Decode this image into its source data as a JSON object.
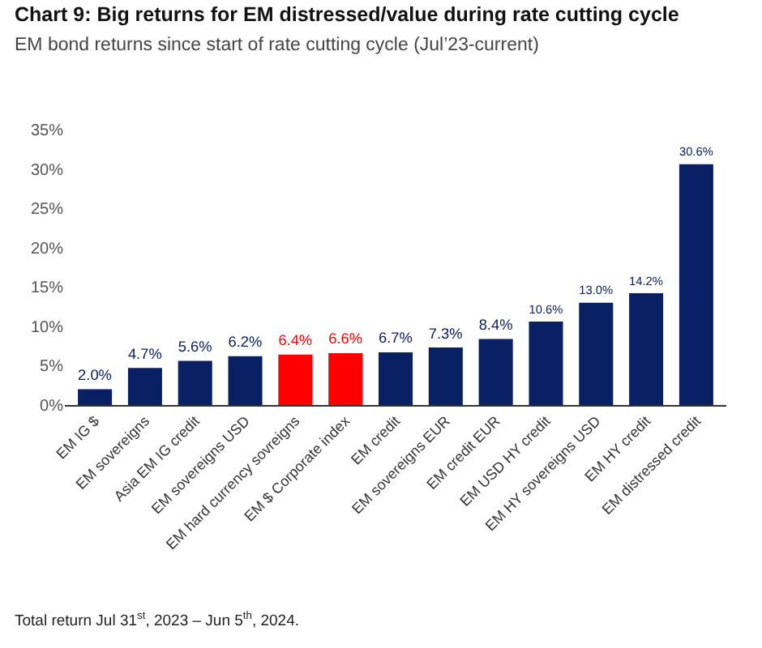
{
  "chart_data": {
    "type": "bar",
    "title": "Chart 9: Big returns for EM distressed/value during rate cutting cycle",
    "subtitle": "EM bond returns since start of rate cutting cycle (Jul’23-current)",
    "categories": [
      "EM IG $",
      "EM sovereigns",
      "Asia EM IG credit",
      "EM sovereigns USD",
      "EM hard currency sovreigns",
      "EM $ Corporate index",
      "EM credit",
      "EM sovereigns EUR",
      "EM credit EUR",
      "EM USD HY credit",
      "EM HY sovereigns USD",
      "EM HY credit",
      "EM distressed credit"
    ],
    "values": [
      2.0,
      4.7,
      5.6,
      6.2,
      6.4,
      6.6,
      6.7,
      7.3,
      8.4,
      10.6,
      13.0,
      14.2,
      30.6
    ],
    "value_labels": [
      "2.0%",
      "4.7%",
      "5.6%",
      "6.2%",
      "6.4%",
      "6.6%",
      "6.7%",
      "7.3%",
      "8.4%",
      "10.6%",
      "13.0%",
      "14.2%",
      "30.6%"
    ],
    "colors": [
      "#0a2064",
      "#0a2064",
      "#0a2064",
      "#0a2064",
      "#ff0000",
      "#ff0000",
      "#0a2064",
      "#0a2064",
      "#0a2064",
      "#0a2064",
      "#0a2064",
      "#0a2064",
      "#0a2064"
    ],
    "ylim": [
      0,
      35
    ],
    "yticks": [
      {
        "value": 0,
        "label": "0%"
      },
      {
        "value": 5,
        "label": "5%"
      },
      {
        "value": 10,
        "label": "10%"
      },
      {
        "value": 15,
        "label": "15%"
      },
      {
        "value": 20,
        "label": "20%"
      },
      {
        "value": 25,
        "label": "25%"
      },
      {
        "value": 30,
        "label": "30%"
      },
      {
        "value": 35,
        "label": "35%"
      }
    ],
    "grid": false,
    "annotations": [
      "Total return Jul 31$^{st}$, 2023 – Jun 5$^{th}$, 2024."
    ]
  }
}
